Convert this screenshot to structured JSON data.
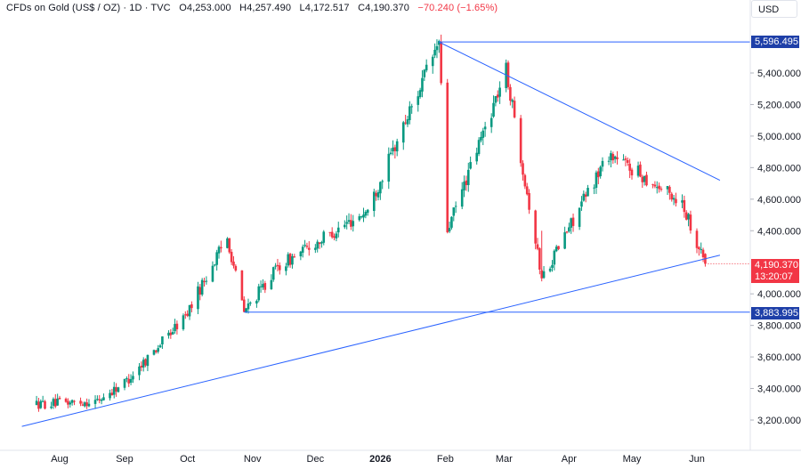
{
  "header": {
    "symbol": "CFDs on Gold (US$ / OZ) · 1D · TVC",
    "open_label": "O",
    "open_value": "4,253.000",
    "high_label": "H",
    "high_value": "4,257.490",
    "low_label": "L",
    "low_value": "4,172.517",
    "close_label": "C",
    "close_value": "4,190.370",
    "change": "−70.240 (−1.65%)",
    "change_color": "#f23645"
  },
  "price_axis": {
    "currency": "USD",
    "ticks": [
      "5,400.000",
      "5,200.000",
      "5,000.000",
      "4,800.000",
      "4,600.000",
      "4,400.000",
      "4,000.000",
      "3,800.000",
      "3,600.000",
      "3,400.000",
      "3,200.000"
    ]
  },
  "time_axis": {
    "labels": [
      "Aug",
      "Sep",
      "Oct",
      "Nov",
      "Dec",
      "2026",
      "Feb",
      "Mar",
      "Apr",
      "May",
      "Jun"
    ]
  },
  "tags": {
    "high_level": "5,596.495",
    "low_level": "3,883.995",
    "last_price": "4,190.370",
    "countdown": "13:20:07"
  },
  "colors": {
    "up": "#089981",
    "down": "#f23645",
    "trendline": "#2962ff",
    "level_tag": "#1e3fa8",
    "last_price_tag": "#f23645"
  },
  "chart_data": {
    "type": "candlestick",
    "timeframe": "1D",
    "ylim": [
      3150,
      5620
    ],
    "price_key_points": [
      {
        "date": "2025-07-21",
        "price": 3300
      },
      {
        "date": "2025-08-19",
        "price": 3320
      },
      {
        "date": "2025-09-02",
        "price": 3450
      },
      {
        "date": "2025-09-30",
        "price": 3860
      },
      {
        "date": "2025-10-20",
        "price": 4360
      },
      {
        "date": "2025-10-28",
        "price": 3884
      },
      {
        "date": "2025-11-13",
        "price": 4170
      },
      {
        "date": "2025-12-26",
        "price": 4530
      },
      {
        "date": "2026-01-29",
        "price": 5596
      },
      {
        "date": "2026-02-02",
        "price": 4400
      },
      {
        "date": "2026-03-02",
        "price": 5420
      },
      {
        "date": "2026-03-19",
        "price": 4100
      },
      {
        "date": "2026-04-20",
        "price": 4890
      },
      {
        "date": "2026-05-25",
        "price": 4580
      },
      {
        "date": "2026-06-05",
        "price": 4190
      }
    ],
    "last_candle": {
      "open": 4253.0,
      "high": 4257.49,
      "low": 4172.517,
      "close": 4190.37
    },
    "horizontal_levels": [
      5596.495,
      3883.995
    ],
    "trendlines": [
      {
        "name": "upper",
        "points": [
          {
            "date": "2026-01-29",
            "price": 5596
          },
          {
            "date": "2026-06-12",
            "price": 4720
          }
        ]
      },
      {
        "name": "lower",
        "points": [
          {
            "date": "2025-07-14",
            "price": 3160
          },
          {
            "date": "2026-06-12",
            "price": 4245
          }
        ]
      }
    ]
  }
}
